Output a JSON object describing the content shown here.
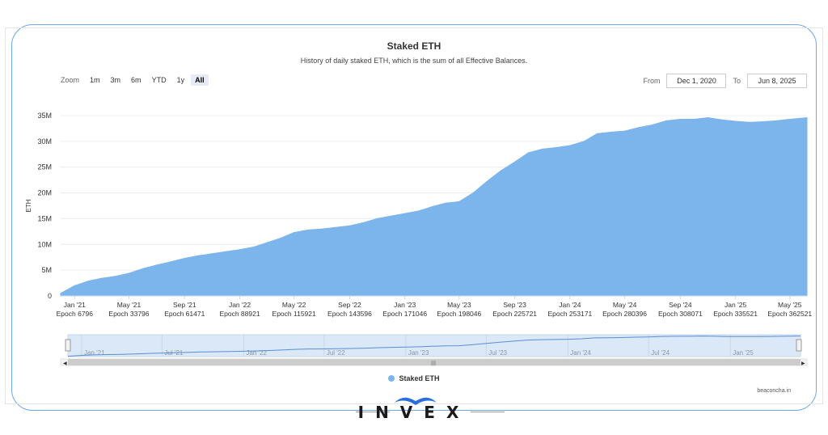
{
  "chart_data": {
    "type": "area",
    "title": "Staked ETH",
    "subtitle": "History of daily staked ETH, which is the sum of all Effective Balances.",
    "ylabel": "ETH",
    "ylim": [
      0,
      35
    ],
    "yticks": [
      {
        "v": 0,
        "label": "0"
      },
      {
        "v": 5,
        "label": "5M"
      },
      {
        "v": 10,
        "label": "10M"
      },
      {
        "v": 15,
        "label": "15M"
      },
      {
        "v": 20,
        "label": "20M"
      },
      {
        "v": 25,
        "label": "25M"
      },
      {
        "v": 30,
        "label": "30M"
      },
      {
        "v": 35,
        "label": "35M"
      }
    ],
    "xrange": [
      "2020-12-01",
      "2025-06-08"
    ],
    "xticks": [
      {
        "date": "2021-01-01",
        "label": "Jan '21",
        "epoch": "Epoch 6796"
      },
      {
        "date": "2021-05-01",
        "label": "May '21",
        "epoch": "Epoch 33796"
      },
      {
        "date": "2021-09-01",
        "label": "Sep '21",
        "epoch": "Epoch 61471"
      },
      {
        "date": "2022-01-01",
        "label": "Jan '22",
        "epoch": "Epoch 88921"
      },
      {
        "date": "2022-05-01",
        "label": "May '22",
        "epoch": "Epoch 115921"
      },
      {
        "date": "2022-09-01",
        "label": "Sep '22",
        "epoch": "Epoch 143596"
      },
      {
        "date": "2023-01-01",
        "label": "Jan '23",
        "epoch": "Epoch 171046"
      },
      {
        "date": "2023-05-01",
        "label": "May '23",
        "epoch": "Epoch 198046"
      },
      {
        "date": "2023-09-01",
        "label": "Sep '23",
        "epoch": "Epoch 225721"
      },
      {
        "date": "2024-01-01",
        "label": "Jan '24",
        "epoch": "Epoch 253171"
      },
      {
        "date": "2024-05-01",
        "label": "May '24",
        "epoch": "Epoch 280396"
      },
      {
        "date": "2024-09-01",
        "label": "Sep '24",
        "epoch": "Epoch 308071"
      },
      {
        "date": "2025-01-01",
        "label": "Jan '25",
        "epoch": "Epoch 335521"
      },
      {
        "date": "2025-05-01",
        "label": "May '25",
        "epoch": "Epoch 362521"
      }
    ],
    "series": [
      {
        "name": "Staked ETH",
        "color": "#7cb5ec",
        "points": [
          [
            "2020-12-01",
            0.5
          ],
          [
            "2021-01-01",
            2.0
          ],
          [
            "2021-02-01",
            2.9
          ],
          [
            "2021-03-01",
            3.4
          ],
          [
            "2021-04-01",
            3.8
          ],
          [
            "2021-05-01",
            4.4
          ],
          [
            "2021-06-01",
            5.3
          ],
          [
            "2021-07-01",
            6.0
          ],
          [
            "2021-08-01",
            6.6
          ],
          [
            "2021-09-01",
            7.3
          ],
          [
            "2021-10-01",
            7.8
          ],
          [
            "2021-11-01",
            8.2
          ],
          [
            "2021-12-01",
            8.6
          ],
          [
            "2022-01-01",
            9.0
          ],
          [
            "2022-02-01",
            9.5
          ],
          [
            "2022-03-01",
            10.3
          ],
          [
            "2022-04-01",
            11.2
          ],
          [
            "2022-05-01",
            12.3
          ],
          [
            "2022-06-01",
            12.8
          ],
          [
            "2022-07-01",
            13.0
          ],
          [
            "2022-08-01",
            13.3
          ],
          [
            "2022-09-01",
            13.6
          ],
          [
            "2022-10-01",
            14.2
          ],
          [
            "2022-11-01",
            15.0
          ],
          [
            "2022-12-01",
            15.5
          ],
          [
            "2023-01-01",
            16.0
          ],
          [
            "2023-02-01",
            16.5
          ],
          [
            "2023-03-01",
            17.3
          ],
          [
            "2023-04-01",
            18.0
          ],
          [
            "2023-05-01",
            18.3
          ],
          [
            "2023-06-01",
            20.0
          ],
          [
            "2023-07-01",
            22.2
          ],
          [
            "2023-08-01",
            24.3
          ],
          [
            "2023-09-01",
            26.0
          ],
          [
            "2023-10-01",
            27.8
          ],
          [
            "2023-11-01",
            28.5
          ],
          [
            "2023-12-01",
            28.8
          ],
          [
            "2024-01-01",
            29.2
          ],
          [
            "2024-02-01",
            30.0
          ],
          [
            "2024-03-01",
            31.5
          ],
          [
            "2024-04-01",
            31.8
          ],
          [
            "2024-05-01",
            32.0
          ],
          [
            "2024-06-01",
            32.7
          ],
          [
            "2024-07-01",
            33.2
          ],
          [
            "2024-08-01",
            34.0
          ],
          [
            "2024-09-01",
            34.3
          ],
          [
            "2024-10-01",
            34.3
          ],
          [
            "2024-11-01",
            34.6
          ],
          [
            "2024-12-01",
            34.2
          ],
          [
            "2025-01-01",
            33.9
          ],
          [
            "2025-02-01",
            33.7
          ],
          [
            "2025-03-01",
            33.8
          ],
          [
            "2025-04-01",
            34.0
          ],
          [
            "2025-05-01",
            34.3
          ],
          [
            "2025-06-08",
            34.6
          ]
        ]
      }
    ],
    "navigator_ticks": [
      {
        "date": "2021-01-01",
        "label": "Jan '21"
      },
      {
        "date": "2021-07-01",
        "label": "Jul '21"
      },
      {
        "date": "2022-01-01",
        "label": "Jan '22"
      },
      {
        "date": "2022-07-01",
        "label": "Jul '22"
      },
      {
        "date": "2023-01-01",
        "label": "Jan '23"
      },
      {
        "date": "2023-07-01",
        "label": "Jul '23"
      },
      {
        "date": "2024-01-01",
        "label": "Jan '24"
      },
      {
        "date": "2024-07-01",
        "label": "Jul '24"
      },
      {
        "date": "2025-01-01",
        "label": "Jan '25"
      }
    ],
    "grid": true,
    "legend": "bottom-center"
  },
  "toolbar": {
    "zoom_label": "Zoom",
    "zoom_buttons": [
      "1m",
      "3m",
      "6m",
      "YTD",
      "1y",
      "All"
    ],
    "from_label": "From",
    "from_value": "Dec 1, 2020",
    "to_label": "To",
    "to_value": "Jun 8, 2025"
  },
  "legend_label": "Staked ETH",
  "credit": "beaconcha.in",
  "brand": {
    "text": "INVEX",
    "color": "#1a1a1a",
    "accent": "#2a6fe0"
  }
}
